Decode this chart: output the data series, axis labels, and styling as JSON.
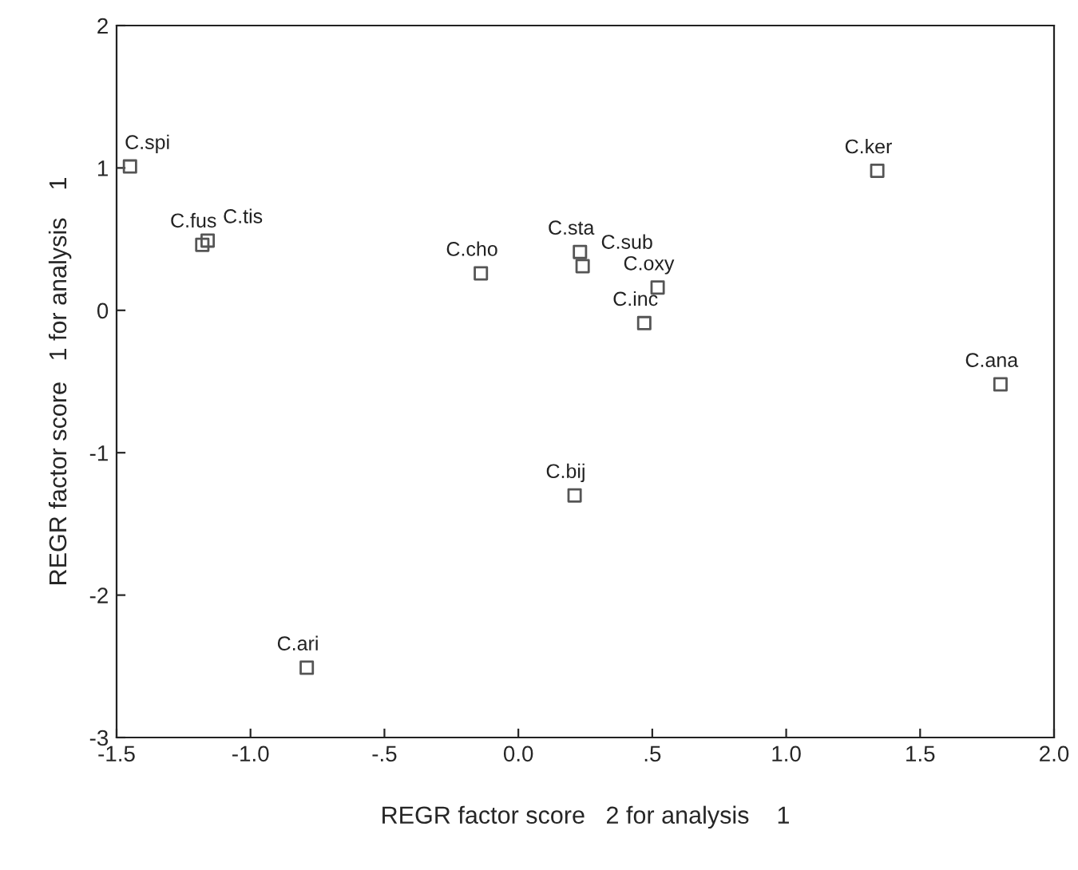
{
  "chart_data": {
    "type": "scatter",
    "xlabel": "REGR factor score   2 for analysis    1",
    "ylabel": "REGR factor score   1 for analysis    1",
    "x": [
      -1.45,
      -1.18,
      -1.16,
      -0.14,
      0.23,
      0.24,
      0.52,
      0.47,
      1.34,
      1.8,
      0.21,
      -0.79
    ],
    "values": [
      1.01,
      0.46,
      0.49,
      0.26,
      0.41,
      0.31,
      0.16,
      -0.09,
      0.98,
      -0.52,
      -1.3,
      -2.51
    ],
    "value_labels": [
      "C.spi",
      "C.fus",
      "C.tis",
      "C.cho",
      "C.sta",
      "C.sub",
      "C.oxy",
      "C.inc",
      "C.ker",
      "C.ana",
      "C.bij",
      "C.ari"
    ],
    "color": "#555555",
    "marker": "square",
    "xlim": [
      -1.5,
      2.0
    ],
    "xticks": [
      {
        "value": -1.5,
        "label": "-1.5"
      },
      {
        "value": -1.0,
        "label": "-1.0"
      },
      {
        "value": -0.5,
        "label": "-.5"
      },
      {
        "value": 0,
        "label": "0.0"
      },
      {
        "value": 0.5,
        "label": ".5"
      },
      {
        "value": 1.0,
        "label": "1.0"
      },
      {
        "value": 1.5,
        "label": "1.5"
      },
      {
        "value": 2.0,
        "label": "2.0"
      }
    ],
    "ylim": [
      -3,
      2
    ],
    "yticks": [
      -3,
      -2,
      -1,
      0,
      1,
      2
    ],
    "grid": false,
    "legend": false
  }
}
